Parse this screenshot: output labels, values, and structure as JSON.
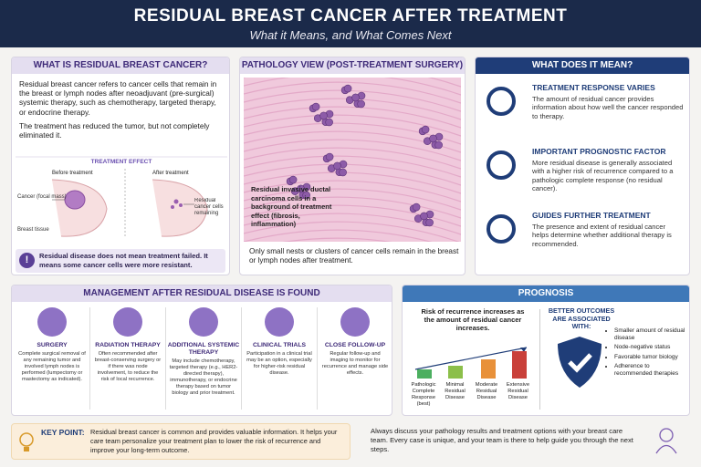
{
  "header": {
    "title": "RESIDUAL BREAST CANCER AFTER TREATMENT",
    "subtitle": "What it Means, and What Comes Next"
  },
  "what_is": {
    "heading": "WHAT IS RESIDUAL BREAST CANCER?",
    "paragraphs": [
      "Residual breast cancer refers to cancer cells that remain in the breast or lymph nodes after neoadjuvant (pre-surgical) systemic therapy, such as chemotherapy, targeted therapy, or endocrine therapy.",
      "The treatment has reduced the tumor, but not completely eliminated it."
    ],
    "effect": {
      "heading": "TREATMENT EFFECT",
      "before": "Before treatment",
      "after": "After treatment",
      "cancer_label": "Cancer (focal mass)",
      "tissue_label": "Breast tissue",
      "residual_label": "Residual cancer cells remaining"
    },
    "note": "Residual disease does not mean treatment failed. It means some cancer cells were more resistant."
  },
  "pathology": {
    "heading": "PATHOLOGY VIEW (POST-TREATMENT SURGERY)",
    "image_caption": "Residual invasive ductal carcinoma cells in a background of treatment effect (fibrosis, inflammation)",
    "text": "Only small nests or clusters of cancer cells remain in the breast or lymph nodes after treatment."
  },
  "meaning": {
    "heading": "WHAT DOES IT MEAN?",
    "items": [
      {
        "title": "TREATMENT RESPONSE VARIES",
        "text": "The amount of residual cancer provides information about how well the cancer responded to therapy."
      },
      {
        "title": "IMPORTANT PROGNOSTIC FACTOR",
        "text": "More residual disease is generally associated with a higher risk of recurrence compared to a pathologic complete response (no residual cancer)."
      },
      {
        "title": "GUIDES FURTHER TREATMENT",
        "text": "The presence and extent of residual cancer helps determine whether additional therapy is recommended."
      }
    ]
  },
  "management": {
    "heading": "MANAGEMENT AFTER RESIDUAL DISEASE IS FOUND",
    "items": [
      {
        "title": "SURGERY",
        "text": "Complete surgical removal of any remaining tumor and involved lymph nodes is performed (lumpectomy or mastectomy as indicated)."
      },
      {
        "title": "RADIATION THERAPY",
        "text": "Often recommended after breast-conserving surgery or if there was node involvement, to reduce the risk of local recurrence."
      },
      {
        "title": "ADDITIONAL SYSTEMIC THERAPY",
        "text": "May include chemotherapy, targeted therapy (e.g., HER2-directed therapy), immunotherapy, or endocrine therapy based on tumor biology and prior treatment."
      },
      {
        "title": "CLINICAL TRIALS",
        "text": "Participation in a clinical trial may be an option, especially for higher-risk residual disease."
      },
      {
        "title": "CLOSE FOLLOW-UP",
        "text": "Regular follow-up and imaging to monitor for recurrence and manage side effects."
      }
    ]
  },
  "prognosis": {
    "heading": "PROGNOSIS",
    "chart_caption": "Risk of recurrence increases as the amount of residual cancer increases.",
    "levels": [
      "Pathologic Complete Response (best)",
      "Minimal Residual Disease",
      "Moderate Residual Disease",
      "Extensive Residual Disease"
    ],
    "outcomes_heading": "BETTER OUTCOMES ARE ASSOCIATED WITH:",
    "outcomes": [
      "Smaller amount of residual disease",
      "Node-negative status",
      "Favorable tumor biology",
      "Adherence to recommended therapies"
    ]
  },
  "key_point": {
    "label": "KEY POINT:",
    "text": "Residual breast cancer is common and provides valuable information. It helps your care team personalize your treatment plan to lower the risk of recurrence and improve your long-term outcome."
  },
  "footer": {
    "text": "Always discuss your pathology results and treatment options with your breast care team. Every case is unique, and your team is there to help guide you through the next steps."
  }
}
